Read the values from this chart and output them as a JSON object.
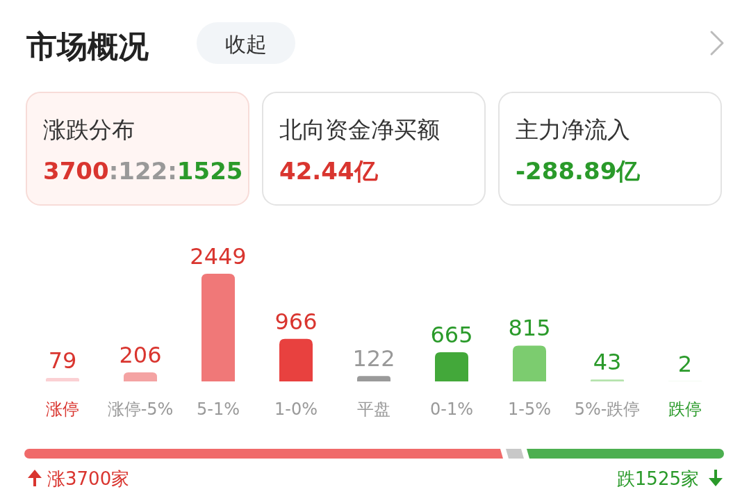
{
  "chart_data": [
    {
      "type": "other",
      "title": "市场概况",
      "annotations": [
        "收起",
        "涨跌分布",
        "3700:122:1525",
        "北向资金净买额",
        "42.44亿",
        "主力净流入",
        "-288.89亿",
        "涨3700家",
        "跌1525家"
      ]
    },
    {
      "type": "bar",
      "categories": [
        "涨停",
        "涨停-5%",
        "5-1%",
        "1-0%",
        "平盘",
        "0-1%",
        "1-5%",
        "5%-跌停",
        "跌停"
      ],
      "values": [
        79,
        206,
        2449,
        966,
        122,
        665,
        815,
        43,
        2
      ],
      "colors": [
        "#fbd0d3",
        "#f4a3a3",
        "#f07878",
        "#e8413f",
        "#9a9a9a",
        "#43a83a",
        "#7ccc6f",
        "#b5e3ad",
        "#d4eed0"
      ],
      "data_labels": true
    }
  ]
}
